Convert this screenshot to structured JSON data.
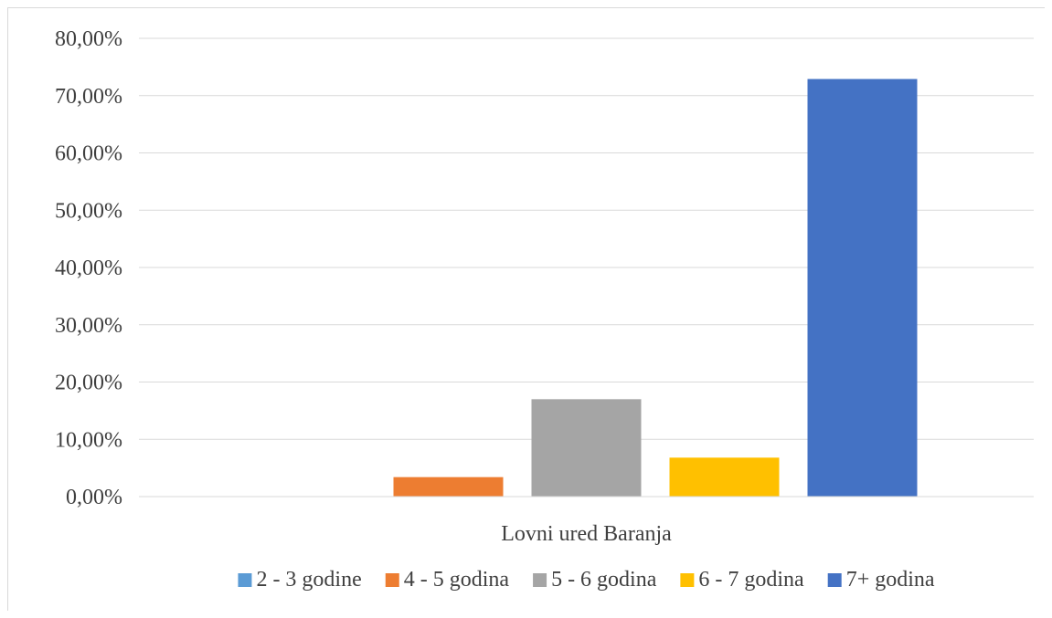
{
  "chart_data": {
    "type": "bar",
    "title": "",
    "xlabel": "",
    "ylabel": "",
    "categories": [
      "Lovni ured Baranja"
    ],
    "series": [
      {
        "name": "2 - 3 godine",
        "values": [
          0.0
        ],
        "color": "#5b9bd5"
      },
      {
        "name": "4 - 5 godina",
        "values": [
          3.4
        ],
        "color": "#ed7d31"
      },
      {
        "name": "5 - 6 godina",
        "values": [
          17.0
        ],
        "color": "#a5a5a5"
      },
      {
        "name": "6 - 7 godina",
        "values": [
          6.8
        ],
        "color": "#ffc000"
      },
      {
        "name": "7+ godina",
        "values": [
          72.9
        ],
        "color": "#4472c4"
      }
    ],
    "ylim": [
      0,
      80
    ],
    "yticks": [
      0,
      10,
      20,
      30,
      40,
      50,
      60,
      70,
      80
    ],
    "ytick_labels": [
      "0,00%",
      "10,00%",
      "20,00%",
      "30,00%",
      "40,00%",
      "50,00%",
      "60,00%",
      "70,00%",
      "80,00%"
    ],
    "grid": true,
    "legend_position": "bottom"
  }
}
